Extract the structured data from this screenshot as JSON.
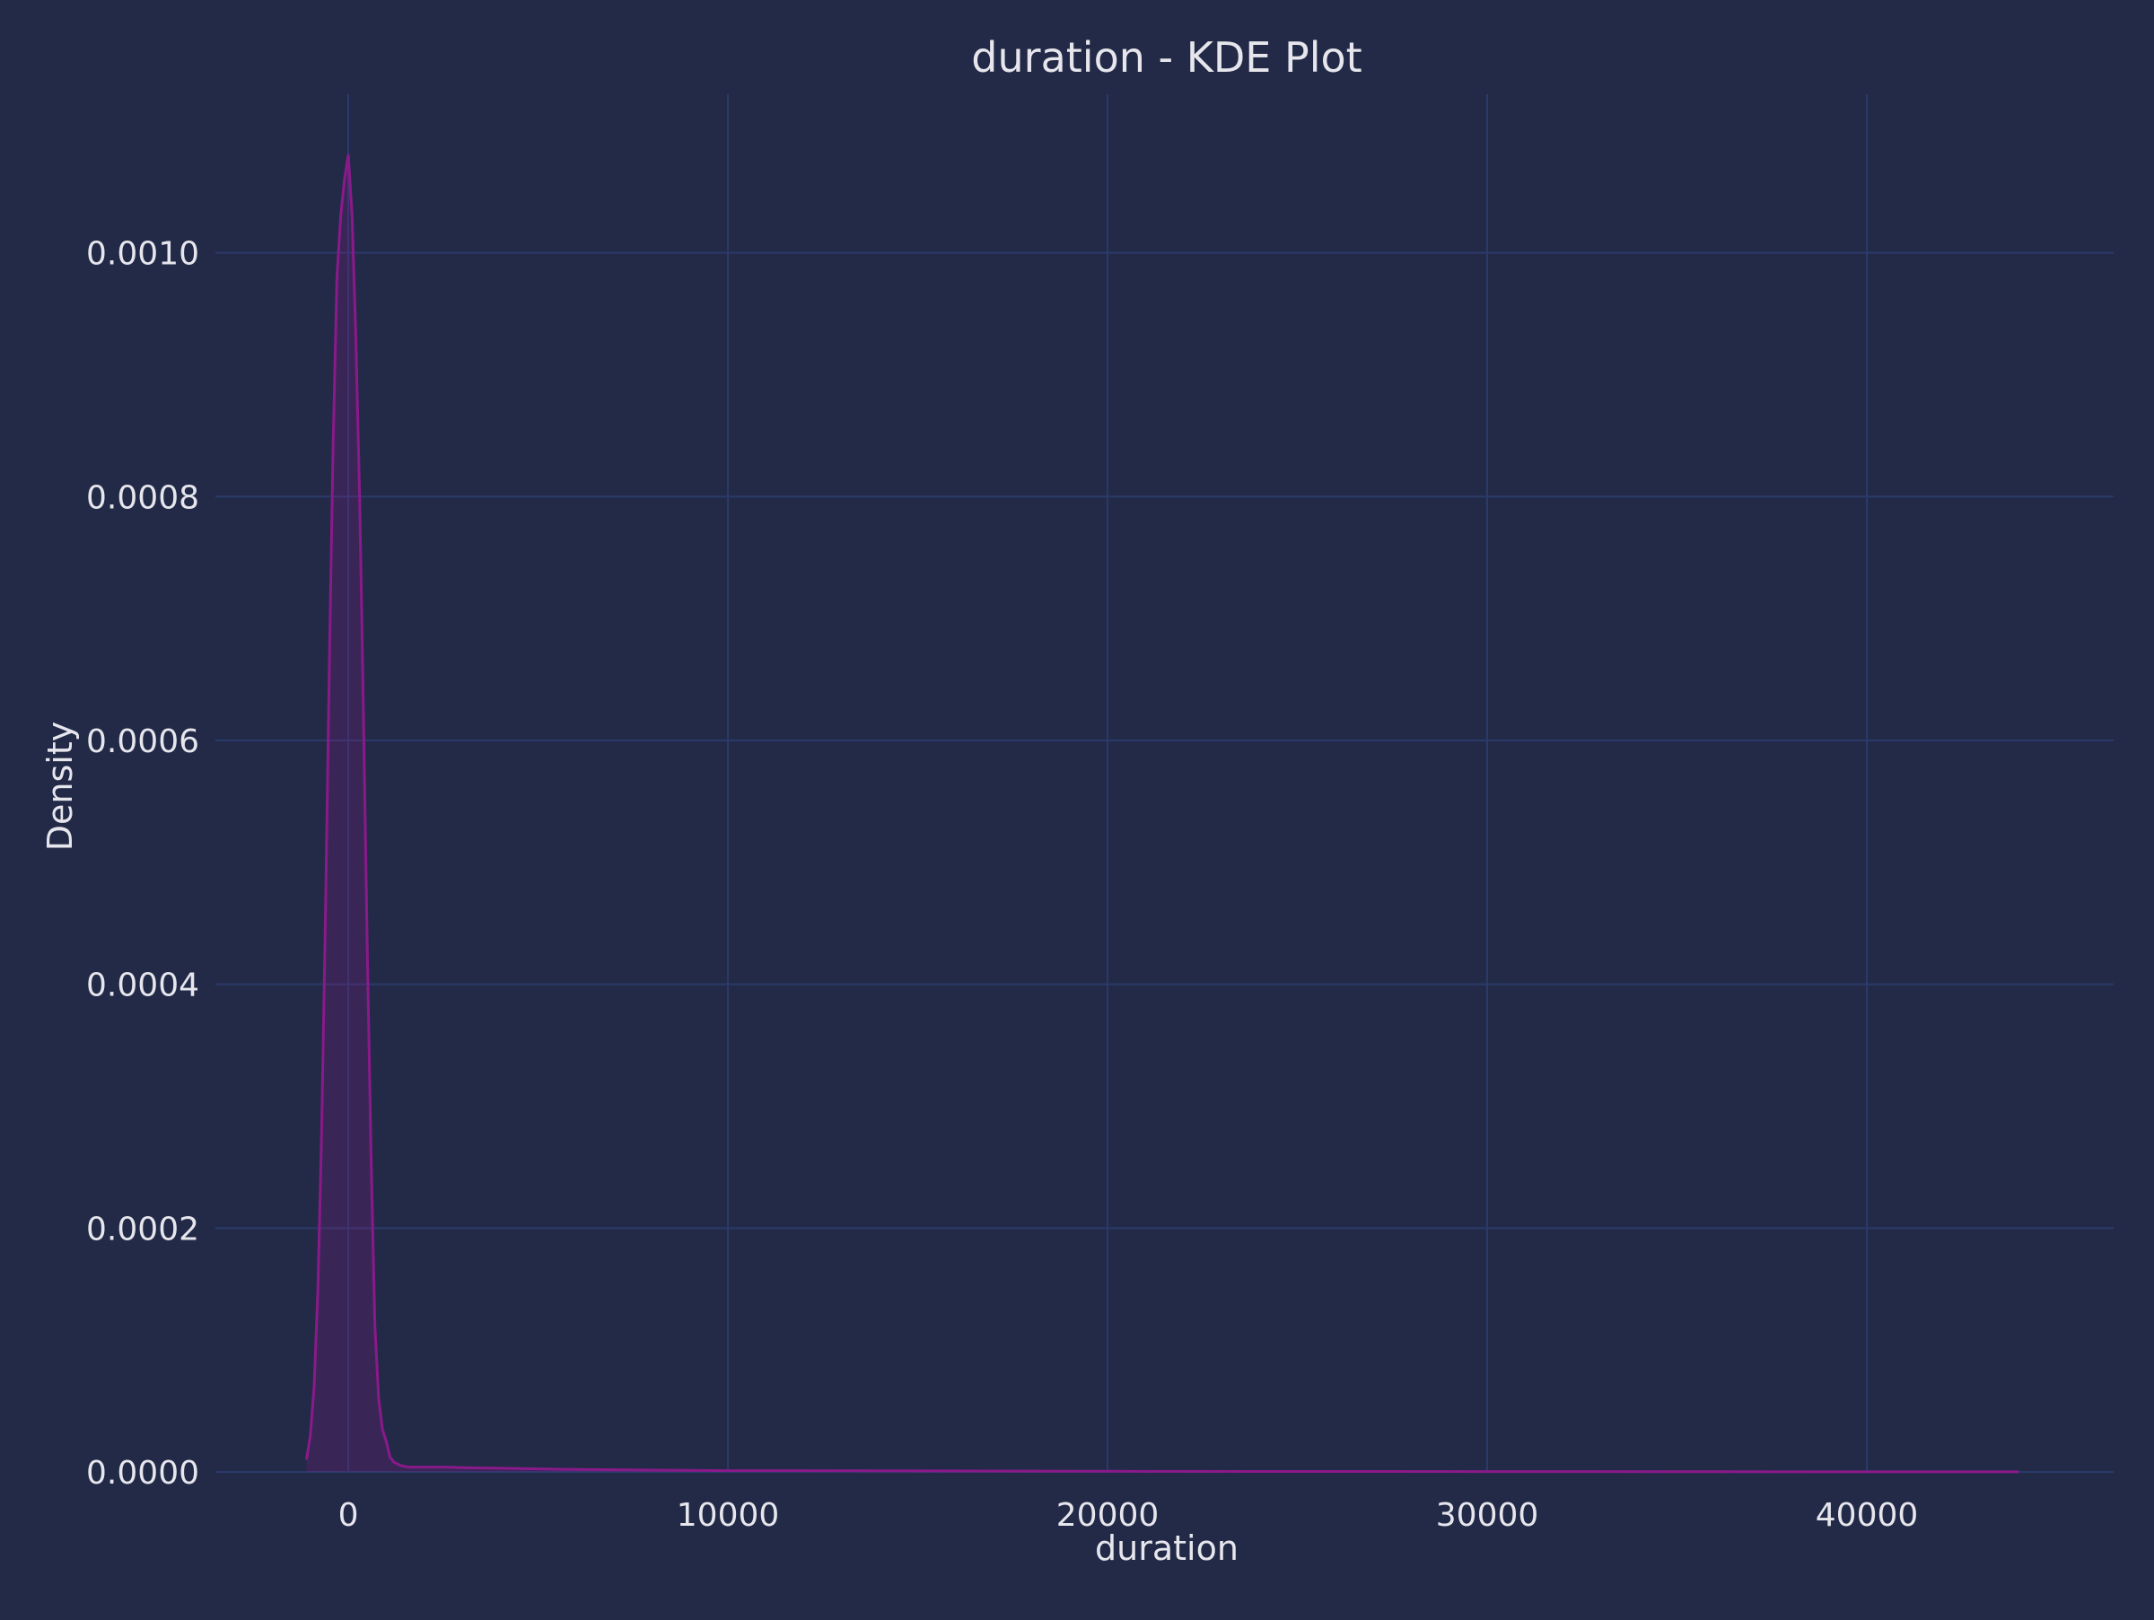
{
  "chart_data": {
    "type": "area",
    "title": "duration - KDE Plot",
    "xlabel": "duration",
    "ylabel": "Density",
    "xlim": [
      -3500,
      46500
    ],
    "ylim": [
      0,
      0.00113
    ],
    "x_ticks": [
      0,
      10000,
      20000,
      30000,
      40000
    ],
    "x_tick_labels": [
      "0",
      "10000",
      "20000",
      "30000",
      "40000"
    ],
    "y_ticks": [
      0,
      0.0002,
      0.0004,
      0.0006,
      0.0008,
      0.001
    ],
    "y_tick_labels": [
      "0.0000",
      "0.0002",
      "0.0004",
      "0.0006",
      "0.0008",
      "0.0010"
    ],
    "grid": true,
    "legend": "none",
    "series": [
      {
        "x": [
          -1100,
          -1000,
          -900,
          -800,
          -700,
          -600,
          -500,
          -400,
          -300,
          -200,
          -100,
          0,
          100,
          200,
          300,
          400,
          500,
          600,
          700,
          800,
          900,
          1000,
          1100,
          1200,
          1400,
          1600,
          2000,
          2500,
          3000,
          4000,
          5000,
          6000,
          8000,
          10000,
          12000,
          15000,
          20000,
          25000,
          30000,
          35000,
          40000,
          44000
        ],
        "y": [
          1e-05,
          3e-05,
          7e-05,
          0.00015,
          0.00028,
          0.00046,
          0.00066,
          0.00084,
          0.00098,
          0.00103,
          0.00106,
          0.00108,
          0.00103,
          0.00093,
          0.0008,
          0.00062,
          0.00043,
          0.00026,
          0.00012,
          6e-05,
          3.5e-05,
          2.5e-05,
          1.2e-05,
          8e-06,
          5e-06,
          4e-06,
          4e-06,
          4e-06,
          3.5e-06,
          3e-06,
          2.5e-06,
          2e-06,
          1.5e-06,
          1e-06,
          1e-06,
          8e-07,
          5e-07,
          4e-07,
          3e-07,
          2e-07,
          1e-07,
          1e-07
        ]
      }
    ]
  },
  "colors": {
    "background": "#222a48",
    "grid": "#2c3a6a",
    "line": "#8a1a8a",
    "fill": "#8b1a8b",
    "text": "#e6e6ec"
  }
}
